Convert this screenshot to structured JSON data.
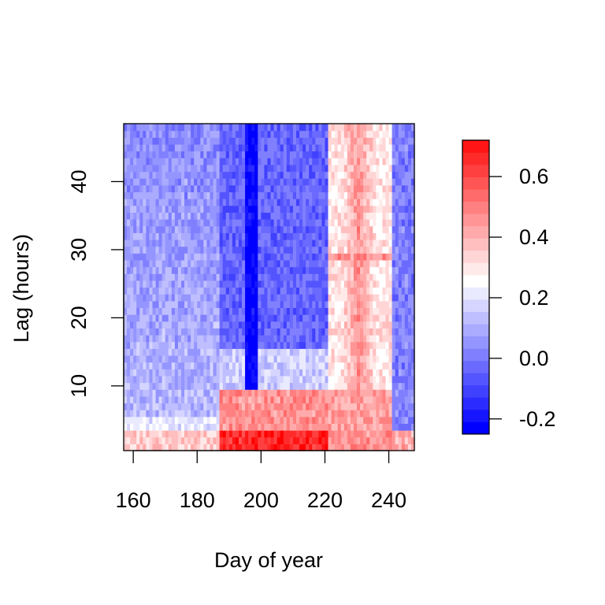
{
  "chart_data": {
    "type": "heatmap",
    "title": "",
    "xlabel": "Day of year",
    "ylabel": "Lag (hours)",
    "x_range": [
      157,
      248
    ],
    "y_range": [
      1,
      48
    ],
    "x_ticks": [
      160,
      180,
      200,
      220,
      240
    ],
    "y_ticks": [
      10,
      20,
      30,
      40
    ],
    "colorbar": {
      "range": [
        -0.25,
        0.72
      ],
      "ticks": [
        -0.2,
        0.0,
        0.2,
        0.4,
        0.6
      ],
      "tick_labels": [
        "-0.2",
        "0.0",
        "0.2",
        "0.4",
        "0.6"
      ],
      "low_color": "#0000ff",
      "mid_color": "#ffffff",
      "high_color": "#ff0000",
      "mid_value": 0.25
    },
    "value_description_by_region": [
      {
        "days": [
          157,
          186
        ],
        "lags": [
          1,
          3
        ],
        "value": 0.35
      },
      {
        "days": [
          187,
          220
        ],
        "lags": [
          1,
          3
        ],
        "value": 0.65
      },
      {
        "days": [
          221,
          248
        ],
        "lags": [
          1,
          3
        ],
        "value": 0.45
      },
      {
        "days": [
          187,
          220
        ],
        "lags": [
          4,
          9
        ],
        "value": 0.45
      },
      {
        "days": [
          221,
          240
        ],
        "lags": [
          4,
          48
        ],
        "value": 0.38
      },
      {
        "days": [
          157,
          186
        ],
        "lags": [
          10,
          48
        ],
        "value": 0.05
      },
      {
        "days": [
          187,
          215
        ],
        "lags": [
          15,
          48
        ],
        "value": -0.1
      },
      {
        "days": [
          196,
          198
        ],
        "lags": [
          10,
          48
        ],
        "value": -0.25
      }
    ]
  }
}
